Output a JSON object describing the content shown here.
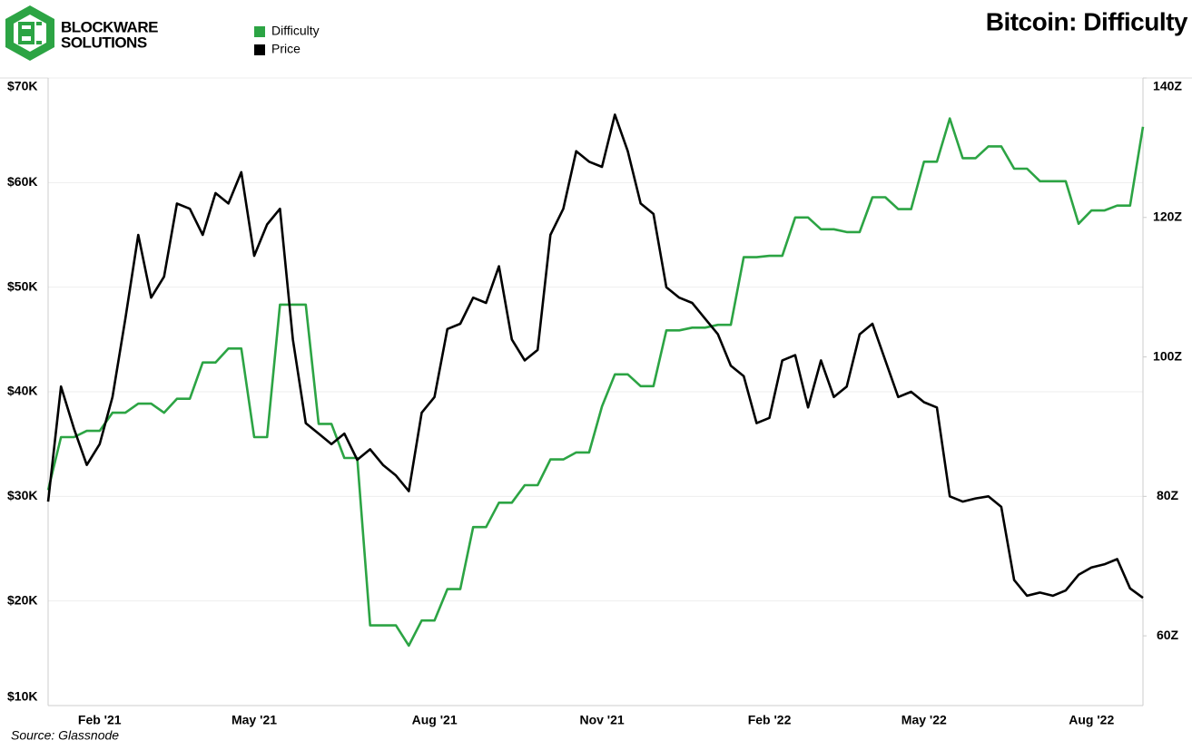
{
  "chart_data": {
    "type": "line",
    "title": "Bitcoin: Difficulty",
    "brand": [
      "BLOCKWARE",
      "SOLUTIONS"
    ],
    "source": "Source: Glassnode",
    "categories": [
      null,
      null,
      null,
      null,
      "Feb '21",
      null,
      null,
      null,
      null,
      null,
      null,
      null,
      null,
      null,
      null,
      null,
      "May '21",
      null,
      null,
      null,
      null,
      null,
      null,
      null,
      null,
      null,
      null,
      null,
      null,
      null,
      "Aug '21",
      null,
      null,
      null,
      null,
      null,
      null,
      null,
      null,
      null,
      null,
      null,
      null,
      "Nov '21",
      null,
      null,
      null,
      null,
      null,
      null,
      null,
      null,
      null,
      null,
      null,
      null,
      "Feb '22",
      null,
      null,
      null,
      null,
      null,
      null,
      null,
      null,
      null,
      null,
      null,
      "May '22",
      null,
      null,
      null,
      null,
      null,
      null,
      null,
      null,
      null,
      null,
      null,
      null,
      "Aug '22",
      null,
      null,
      null,
      null
    ],
    "series": [
      {
        "name": "Difficulty",
        "color": "#2ca444",
        "axis": "y2",
        "values": [
          80.9,
          88.5,
          88.5,
          89.4,
          89.4,
          92,
          92,
          93.3,
          93.3,
          92,
          94,
          94,
          99.2,
          99.2,
          101.2,
          101.2,
          88.5,
          88.5,
          107.5,
          107.5,
          107.5,
          90.4,
          90.4,
          85.5,
          85.5,
          61.5,
          61.5,
          61.5,
          58.6,
          62.2,
          62.2,
          66.7,
          66.7,
          75.6,
          75.6,
          79.1,
          79.1,
          81.6,
          81.6,
          85.3,
          85.3,
          86.3,
          86.3,
          92.9,
          97.5,
          97.5,
          95.8,
          95.8,
          103.8,
          103.8,
          104.2,
          104.2,
          104.6,
          104.6,
          114.3,
          114.3,
          114.5,
          114.5,
          120,
          120,
          118.3,
          118.3,
          117.9,
          117.9,
          122.9,
          122.9,
          121.2,
          121.2,
          128,
          128,
          134.2,
          128.5,
          128.5,
          130.2,
          130.2,
          127,
          127,
          125.2,
          125.2,
          125.2,
          119.1,
          121,
          121,
          121.7,
          121.7,
          133
        ]
      },
      {
        "name": "Price",
        "color": "#000000",
        "values": [
          29500,
          40500,
          36500,
          33000,
          35000,
          39500,
          47000,
          55000,
          49000,
          51000,
          58000,
          57500,
          55000,
          59000,
          58000,
          61000,
          53000,
          56000,
          57500,
          45000,
          37000,
          36000,
          35000,
          36000,
          33500,
          34500,
          33000,
          32000,
          30500,
          38000,
          39500,
          46000,
          46500,
          49000,
          48500,
          52000,
          45000,
          43000,
          44000,
          55000,
          57500,
          63000,
          62000,
          61500,
          66500,
          63000,
          58000,
          57000,
          50000,
          49000,
          48500,
          47000,
          45500,
          42500,
          41500,
          37000,
          37500,
          43000,
          43500,
          38500,
          43000,
          39500,
          40500,
          45500,
          46500,
          43000,
          39500,
          40000,
          39000,
          38500,
          30000,
          29500,
          29800,
          30000,
          29000,
          22000,
          20500,
          20800,
          20500,
          21000,
          22500,
          23200,
          23500,
          24000,
          21200,
          20300
        ]
      }
    ],
    "ylim": [
      10000,
      70000
    ],
    "yticks": [
      {
        "value": 10000,
        "label": "$10K"
      },
      {
        "value": 20000,
        "label": "$20K"
      },
      {
        "value": 30000,
        "label": "$30K"
      },
      {
        "value": 40000,
        "label": "$40K"
      },
      {
        "value": 50000,
        "label": "$50K"
      },
      {
        "value": 60000,
        "label": "$60K"
      },
      {
        "value": 70000,
        "label": "$70K"
      }
    ],
    "y2lim": [
      50,
      140
    ],
    "y2ticks": [
      {
        "value": 60,
        "label": "60Z"
      },
      {
        "value": 80,
        "label": "80Z"
      },
      {
        "value": 100,
        "label": "100Z"
      },
      {
        "value": 120,
        "label": "120Z"
      },
      {
        "value": 140,
        "label": "140Z"
      }
    ],
    "grid": true,
    "legend": "top-left"
  }
}
